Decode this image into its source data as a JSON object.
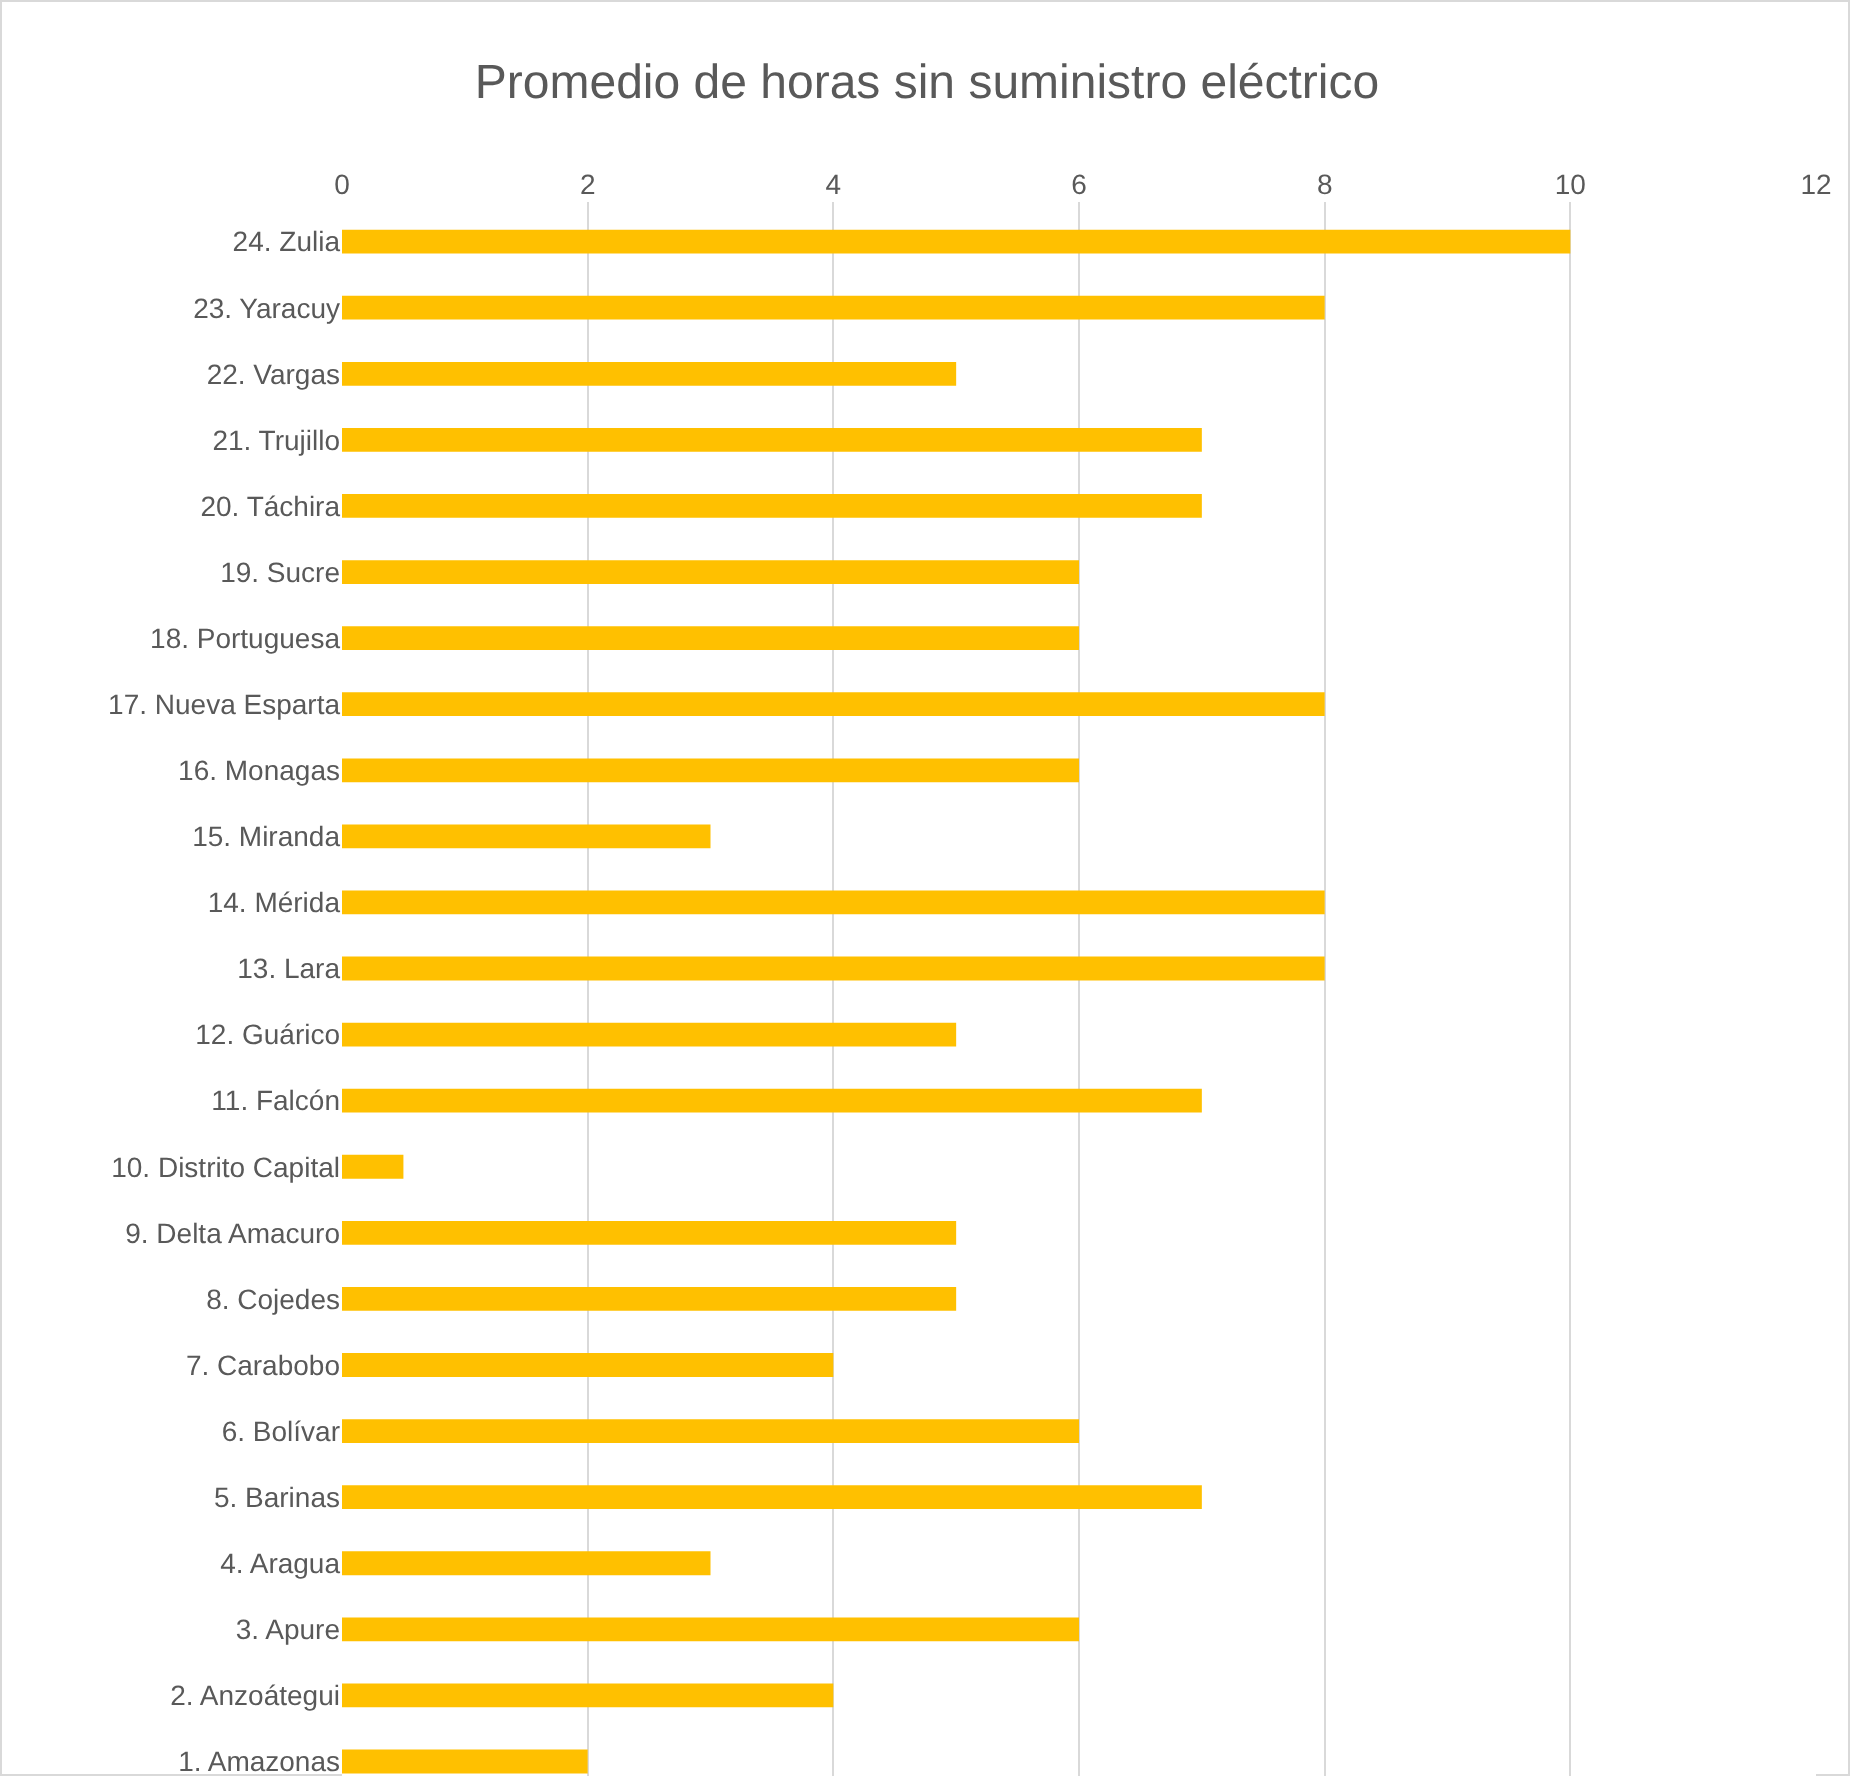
{
  "chart_data": {
    "type": "bar",
    "orientation": "horizontal",
    "title": "Promedio de horas sin suministro eléctrico",
    "categories": [
      "24. Zulia",
      "23. Yaracuy",
      "22. Vargas",
      "21. Trujillo",
      "20. Táchira",
      "19. Sucre",
      "18. Portuguesa",
      "17. Nueva Esparta",
      "16. Monagas",
      "15. Miranda",
      "14. Mérida",
      "13. Lara",
      "12. Guárico",
      "11. Falcón",
      "10. Distrito Capital",
      "9. Delta Amacuro",
      "8. Cojedes",
      "7. Carabobo",
      "6. Bolívar",
      "5. Barinas",
      "4. Aragua",
      "3. Apure",
      "2. Anzoátegui",
      "1. Amazonas"
    ],
    "values": [
      10,
      8,
      5,
      7,
      7,
      6,
      6,
      8,
      6,
      3,
      8,
      8,
      5,
      7,
      0.5,
      5,
      5,
      4,
      6,
      7,
      3,
      6,
      4,
      2
    ],
    "color": "#ffc000",
    "xlim": [
      0,
      12
    ],
    "xticks": [
      0,
      2,
      4,
      6,
      8,
      10,
      12
    ],
    "grid": "x",
    "legend": false
  }
}
